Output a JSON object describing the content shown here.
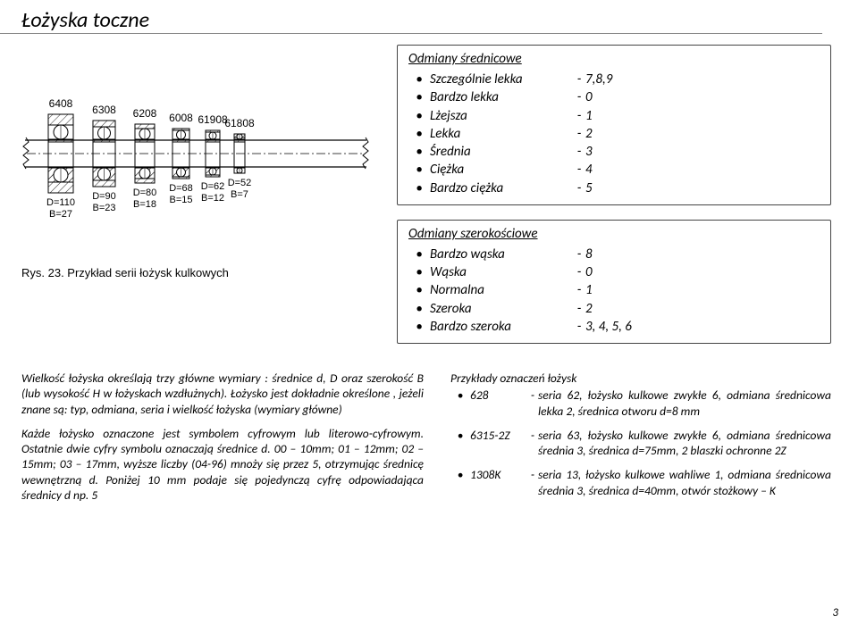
{
  "title": "Łożyska toczne",
  "figure": {
    "caption": "Rys. 23. Przykład serii łożysk kulkowych",
    "bearings": [
      {
        "label": "6408",
        "D": "D=110",
        "B": "B=27",
        "outerR": 44,
        "innerR": 16,
        "ballR": 8
      },
      {
        "label": "6308",
        "D": "D=90",
        "B": "B=23",
        "outerR": 37,
        "innerR": 16,
        "ballR": 7
      },
      {
        "label": "6208",
        "D": "D=80",
        "B": "B=18",
        "outerR": 33,
        "innerR": 16,
        "ballR": 6
      },
      {
        "label": "6008",
        "D": "D=68",
        "B": "B=15",
        "outerR": 28,
        "innerR": 16,
        "ballR": 5
      },
      {
        "label": "61908",
        "D": "D=62",
        "B": "B=12",
        "outerR": 26,
        "innerR": 16,
        "ballR": 4
      },
      {
        "label": "61808",
        "D": "D=52",
        "B": "B=7",
        "outerR": 22,
        "innerR": 16,
        "ballR": 3
      }
    ]
  },
  "sizeVariants": {
    "heading": "Odmiany średnicowe",
    "rows": [
      {
        "label": "Szczególnie lekka",
        "value": "7,8,9"
      },
      {
        "label": "Bardzo lekka",
        "value": "0"
      },
      {
        "label": "Lżejsza",
        "value": "1"
      },
      {
        "label": "Lekka",
        "value": "2"
      },
      {
        "label": "Średnia",
        "value": "3"
      },
      {
        "label": "Ciężka",
        "value": "4"
      },
      {
        "label": "Bardzo ciężka",
        "value": "5"
      }
    ]
  },
  "widthVariants": {
    "heading": "Odmiany szerokościowe",
    "rows": [
      {
        "label": "Bardzo wąska",
        "value": "8"
      },
      {
        "label": "Wąska",
        "value": "0"
      },
      {
        "label": "Normalna",
        "value": "1"
      },
      {
        "label": "Szeroka",
        "value": "2"
      },
      {
        "label": "Bardzo szeroka",
        "value": "3, 4, 5, 6"
      }
    ]
  },
  "leftText": {
    "p1": "Wielkość łożyska określają trzy główne wymiary : średnice d, D oraz szerokość B (lub wysokość H w łożyskach wzdłużnych). Łożysko jest dokładnie określone , jeżeli znane są: typ, odmiana, seria i wielkość łożyska (wymiary główne)",
    "p2": "Każde łożysko oznaczone jest symbolem cyfrowym lub literowo-cyfrowym. Ostatnie dwie cyfry symbolu oznaczają średnice d. 00 – 10mm; 01 – 12mm; 02 – 15mm; 03 – 17mm, wyższe liczby (04-96) mnoży się przez 5, otrzymując średnicę wewnętrzną d. Poniżej 10 mm podaje się pojedynczą cyfrę odpowiadająca średnicy d np. 5"
  },
  "examples": {
    "heading": "Przykłady oznaczeń łożysk",
    "items": [
      {
        "code": "628",
        "text": "seria 62, łożysko kulkowe zwykłe 6, odmiana średnicowa lekka 2, średnica otworu d=8 mm"
      },
      {
        "code": "6315-2Z",
        "text": "seria 63, łożysko kulkowe zwykłe 6, odmiana średnicowa średnia 3, średnica d=75mm, 2 blaszki ochronne 2Z"
      },
      {
        "code": "1308K",
        "text": "seria 13, łożysko kulkowe wahliwe 1, odmiana średnicowa średnia 3, średnica d=40mm, otwór stożkowy – K"
      }
    ]
  },
  "pageNumber": "3"
}
